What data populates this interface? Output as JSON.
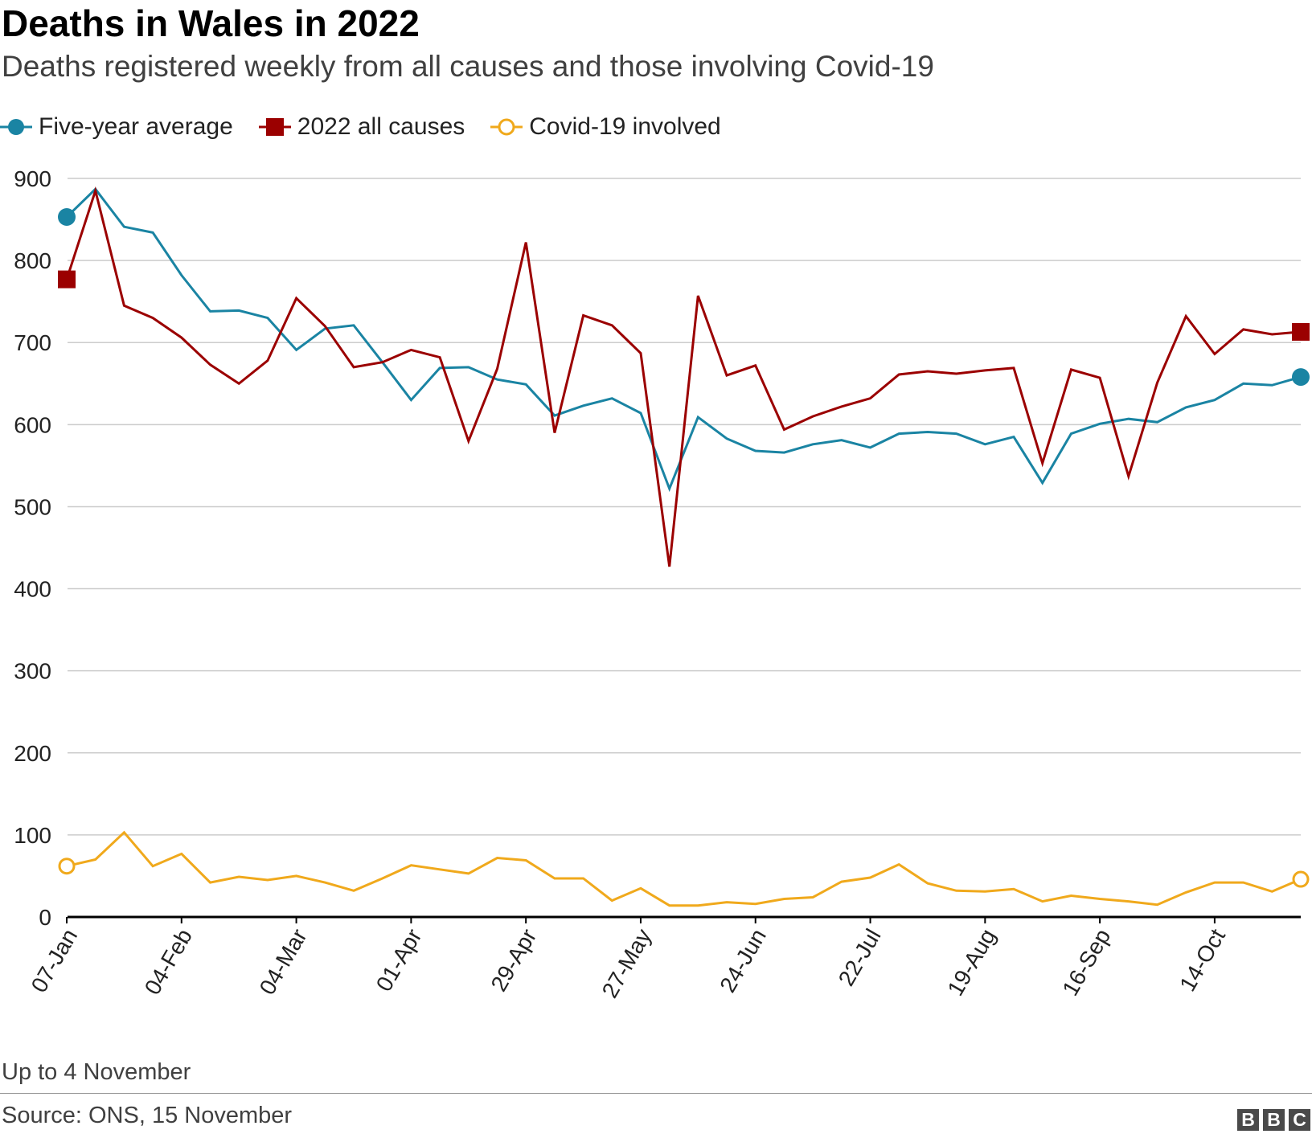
{
  "header": {
    "title": "Deaths in Wales in 2022",
    "subtitle": "Deaths registered weekly from all causes and those involving Covid-19"
  },
  "legend": {
    "items": [
      {
        "label": "Five-year average",
        "color": "#1a84a3",
        "marker": "filled-circle"
      },
      {
        "label": "2022 all causes",
        "color": "#9b0000",
        "marker": "filled-square"
      },
      {
        "label": "Covid-19 involved",
        "color": "#f0a91c",
        "marker": "open-circle"
      }
    ]
  },
  "footer": {
    "note": "Up to 4 November",
    "source": "Source: ONS, 15 November",
    "logo": [
      "B",
      "B",
      "C"
    ]
  },
  "chart_data": {
    "type": "line",
    "title": "Deaths in Wales in 2022",
    "subtitle": "Deaths registered weekly from all causes and those involving Covid-19",
    "xlabel": "",
    "ylabel": "",
    "ylim": [
      0,
      900
    ],
    "yticks": [
      0,
      100,
      200,
      300,
      400,
      500,
      600,
      700,
      800,
      900
    ],
    "grid": true,
    "legend_position": "top-left",
    "x": [
      "07-Jan",
      "14-Jan",
      "21-Jan",
      "28-Jan",
      "04-Feb",
      "11-Feb",
      "18-Feb",
      "25-Feb",
      "04-Mar",
      "11-Mar",
      "18-Mar",
      "25-Mar",
      "01-Apr",
      "08-Apr",
      "15-Apr",
      "22-Apr",
      "29-Apr",
      "06-May",
      "13-May",
      "20-May",
      "27-May",
      "03-Jun",
      "10-Jun",
      "17-Jun",
      "24-Jun",
      "01-Jul",
      "08-Jul",
      "15-Jul",
      "22-Jul",
      "29-Jul",
      "05-Aug",
      "12-Aug",
      "19-Aug",
      "26-Aug",
      "02-Sep",
      "09-Sep",
      "16-Sep",
      "23-Sep",
      "30-Sep",
      "07-Oct",
      "14-Oct",
      "21-Oct",
      "28-Oct",
      "04-Nov"
    ],
    "xticks_shown": [
      "07-Jan",
      "04-Feb",
      "04-Mar",
      "01-Apr",
      "29-Apr",
      "27-May",
      "24-Jun",
      "22-Jul",
      "19-Aug",
      "16-Sep",
      "14-Oct"
    ],
    "series": [
      {
        "name": "Five-year average",
        "color": "#1a84a3",
        "values": [
          853,
          887,
          841,
          834,
          782,
          738,
          739,
          730,
          691,
          717,
          721,
          676,
          630,
          669,
          670,
          655,
          649,
          611,
          623,
          632,
          614,
          522,
          609,
          583,
          568,
          566,
          576,
          581,
          572,
          589,
          591,
          589,
          576,
          585,
          529,
          589,
          601,
          607,
          603,
          621,
          630,
          650,
          648,
          658
        ]
      },
      {
        "name": "2022 all causes",
        "color": "#9b0000",
        "values": [
          777,
          885,
          745,
          730,
          706,
          673,
          650,
          678,
          754,
          720,
          670,
          676,
          691,
          682,
          580,
          668,
          822,
          590,
          733,
          721,
          687,
          427,
          757,
          660,
          672,
          594,
          610,
          622,
          632,
          661,
          665,
          662,
          666,
          669,
          553,
          667,
          657,
          537,
          651,
          732,
          686,
          716,
          710,
          713
        ]
      },
      {
        "name": "Covid-19 involved",
        "color": "#f0a91c",
        "values": [
          62,
          70,
          103,
          62,
          77,
          42,
          49,
          45,
          50,
          42,
          32,
          47,
          63,
          58,
          53,
          72,
          69,
          47,
          47,
          20,
          35,
          14,
          14,
          18,
          16,
          22,
          24,
          43,
          48,
          64,
          41,
          32,
          31,
          34,
          19,
          26,
          22,
          19,
          15,
          30,
          42,
          42,
          31,
          46
        ]
      }
    ]
  }
}
